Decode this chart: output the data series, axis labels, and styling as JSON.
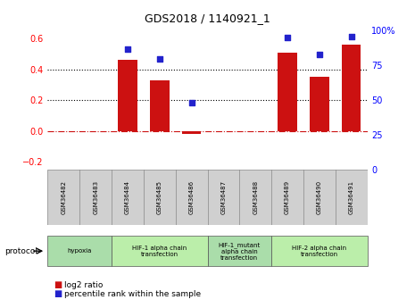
{
  "title": "GDS2018 / 1140921_1",
  "samples": [
    "GSM36482",
    "GSM36483",
    "GSM36484",
    "GSM36485",
    "GSM36486",
    "GSM36487",
    "GSM36488",
    "GSM36489",
    "GSM36490",
    "GSM36491"
  ],
  "log2_ratio": [
    0.0,
    0.0,
    0.46,
    0.33,
    -0.02,
    0.0,
    0.0,
    0.51,
    0.35,
    0.56
  ],
  "percentile_rank": [
    null,
    null,
    87,
    80,
    48,
    null,
    null,
    95,
    83,
    96
  ],
  "ylim_left": [
    -0.25,
    0.65
  ],
  "ylim_right": [
    0,
    100
  ],
  "yticks_left": [
    -0.2,
    0.0,
    0.2,
    0.4,
    0.6
  ],
  "yticks_right": [
    0,
    25,
    50,
    75,
    100
  ],
  "bar_color": "#cc1111",
  "dot_color": "#2222cc",
  "hline_color": "#cc1111",
  "hline_style": "-.",
  "dotline_color": "black",
  "dotline_style": ":",
  "protocol_groups": [
    {
      "label": "hypoxia",
      "start": 0,
      "end": 2,
      "color": "#aaddaa"
    },
    {
      "label": "HIF-1 alpha chain\ntransfection",
      "start": 2,
      "end": 5,
      "color": "#bbeeaa"
    },
    {
      "label": "HIF-1_mutant\nalpha chain\ntransfection",
      "start": 5,
      "end": 7,
      "color": "#aaddaa"
    },
    {
      "label": "HIF-2 alpha chain\ntransfection",
      "start": 7,
      "end": 10,
      "color": "#bbeeaa"
    }
  ],
  "legend_items": [
    {
      "color": "#cc1111",
      "label": "log2 ratio"
    },
    {
      "color": "#2222cc",
      "label": "percentile rank within the sample"
    }
  ],
  "protocol_label": "protocol",
  "background_color": "#ffffff",
  "plot_bg_color": "#ffffff",
  "sample_box_color": "#d0d0d0"
}
